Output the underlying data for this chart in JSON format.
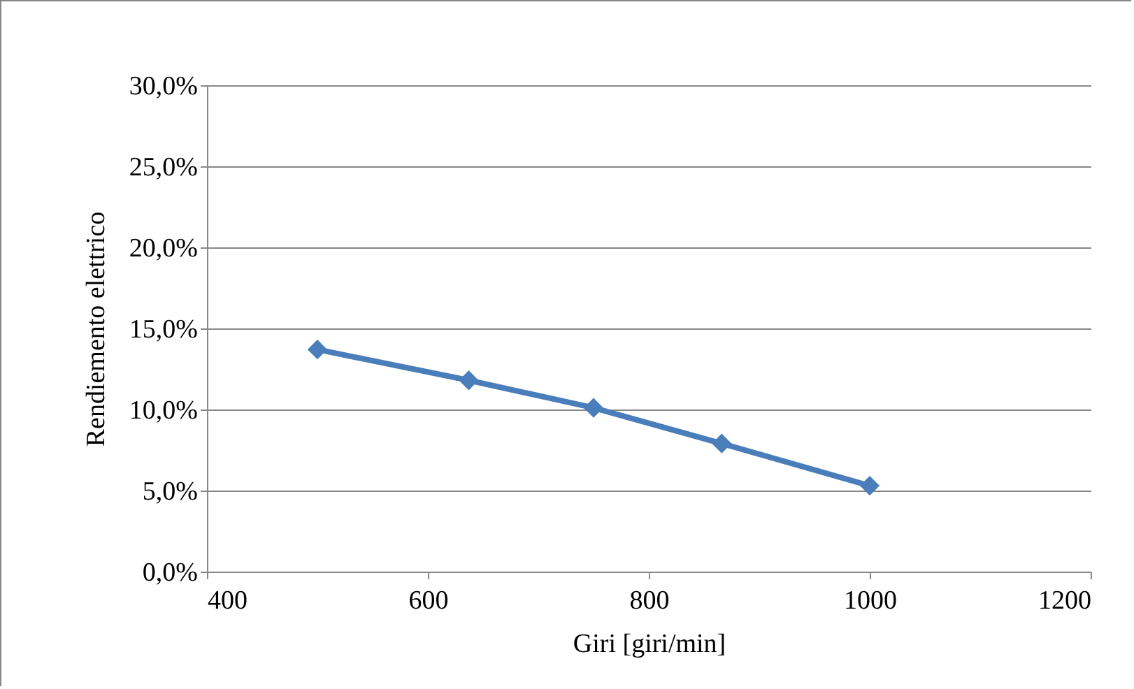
{
  "chart_data": {
    "type": "line",
    "xlabel": "Giri [giri/min]",
    "ylabel": "Rendiemento elettrico",
    "x": [
      500,
      637,
      750,
      866,
      1000
    ],
    "series": [
      {
        "color": "#4a7ebb",
        "values": [
          13.7,
          11.8,
          10.1,
          7.9,
          5.3
        ]
      }
    ],
    "xlim": [
      400,
      1200
    ],
    "xticks": [
      400,
      600,
      800,
      1000,
      1200
    ],
    "ylim": [
      0,
      30
    ],
    "yticks": [
      {
        "value": 0,
        "label": "0,0%"
      },
      {
        "value": 5,
        "label": "5,0%"
      },
      {
        "value": 10,
        "label": "10,0%"
      },
      {
        "value": 15,
        "label": "15,0%"
      },
      {
        "value": 20,
        "label": "20,0%"
      },
      {
        "value": 25,
        "label": "25,0%"
      },
      {
        "value": 30,
        "label": "30,0%"
      }
    ],
    "grid": "y",
    "legend": false,
    "marker": "diamond",
    "line_style": "solid"
  }
}
